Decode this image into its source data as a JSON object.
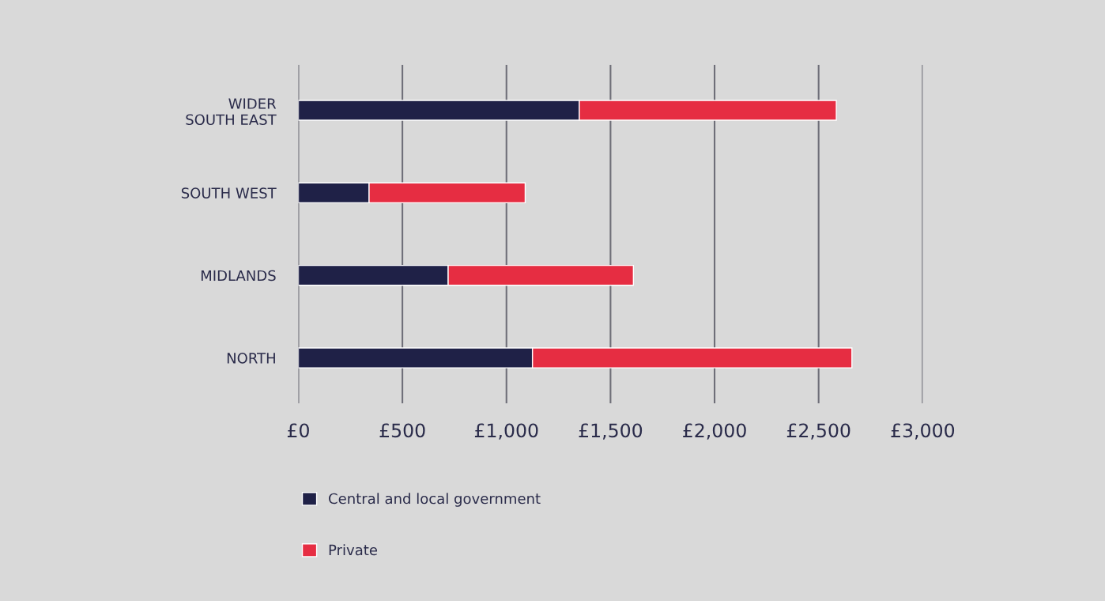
{
  "chart_data": {
    "type": "bar",
    "orientation": "horizontal",
    "stacked": true,
    "categories": [
      "WIDER\nSOUTH EAST",
      "SOUTH WEST",
      "MIDLANDS",
      "NORTH"
    ],
    "series": [
      {
        "name": "Central and local government",
        "color": "#1f2147",
        "values": [
          1350,
          340,
          720,
          1125
        ]
      },
      {
        "name": "Private",
        "color": "#e62d42",
        "values": [
          1235,
          750,
          890,
          1535
        ]
      }
    ],
    "xlim": [
      0,
      3000
    ],
    "xticks": [
      {
        "value": 0,
        "label": "£0"
      },
      {
        "value": 500,
        "label": "£500"
      },
      {
        "value": 1000,
        "label": "£1,000"
      },
      {
        "value": 1500,
        "label": "£1,500"
      },
      {
        "value": 2000,
        "label": "£2,000"
      },
      {
        "value": 2500,
        "label": "£2,500"
      },
      {
        "value": 3000,
        "label": "£3,000"
      }
    ],
    "grid": "x",
    "legend": "bottom"
  }
}
